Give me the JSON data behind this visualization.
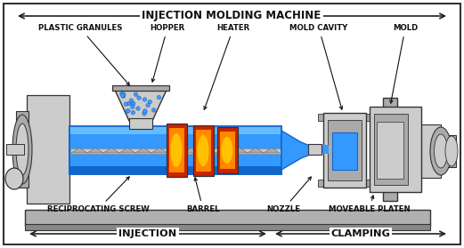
{
  "title": "INJECTION MOLDING MACHINE",
  "labels": {
    "plastic_granules": "PLASTIC GRANULES",
    "hopper": "HOPPER",
    "heater": "HEATER",
    "mold_cavity": "MOLD CAVITY",
    "mold": "MOLD",
    "reciprocating_screw": "RECIPROCATING SCREW",
    "barrel": "BARREL",
    "nozzle": "NOZZLE",
    "moveable_platen": "MOVEABLE PLATEN",
    "injection": "INJECTION",
    "clamping": "CLAMPING"
  },
  "colors": {
    "barrel_blue": "#3399ff",
    "barrel_blue_dark": "#1166cc",
    "barrel_blue_light": "#66bbff",
    "heater_red": "#cc2200",
    "heater_orange": "#ff8800",
    "heater_yellow": "#ffcc00",
    "metal_light": "#cccccc",
    "metal_mid": "#aaaaaa",
    "metal_dark": "#888888",
    "metal_darker": "#666666",
    "granules_blue": "#4499ff",
    "base_gray": "#b0b0b0",
    "arrow_color": "#222222",
    "text_color": "#111111",
    "white": "#ffffff",
    "outline": "#333333",
    "border_color": "#333333"
  }
}
